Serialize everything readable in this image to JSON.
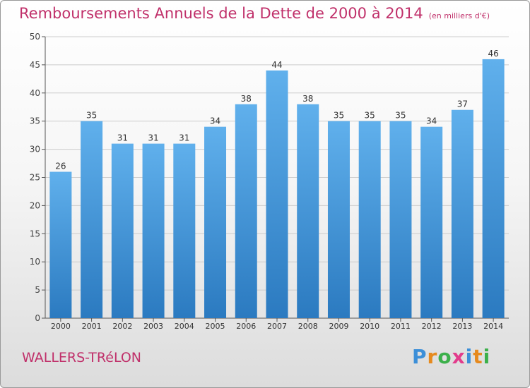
{
  "title": "Remboursements Annuels de la Dette de 2000 à 2014",
  "unit_note": "(en milliers d'€)",
  "commune": "WALLERS-TRéLON",
  "logo": {
    "text": "Proxiti",
    "letters": [
      "P",
      "r",
      "o",
      "x",
      "i",
      "t",
      "i"
    ],
    "colors": [
      "#3c8fd8",
      "#e68a1e",
      "#3bb04a",
      "#e23c8c",
      "#3c8fd8",
      "#e68a1e",
      "#3bb04a"
    ]
  },
  "colors": {
    "title": "#c0306a",
    "bar_top": "#60b0ec",
    "bar_bottom": "#2b7ac0",
    "grid": "#cccccc"
  },
  "chart_data": {
    "type": "bar",
    "title": "Remboursements Annuels de la Dette de 2000 à 2014",
    "ylabel": "",
    "xlabel": "",
    "categories": [
      "2000",
      "2001",
      "2002",
      "2003",
      "2004",
      "2005",
      "2006",
      "2007",
      "2008",
      "2009",
      "2010",
      "2011",
      "2012",
      "2013",
      "2014"
    ],
    "values": [
      26,
      35,
      31,
      31,
      31,
      34,
      38,
      44,
      38,
      35,
      35,
      35,
      34,
      37,
      46
    ],
    "ylim": [
      0,
      50
    ],
    "yticks": [
      0,
      5,
      10,
      15,
      20,
      25,
      30,
      35,
      40,
      45,
      50
    ],
    "grid": true,
    "data_labels": true
  }
}
